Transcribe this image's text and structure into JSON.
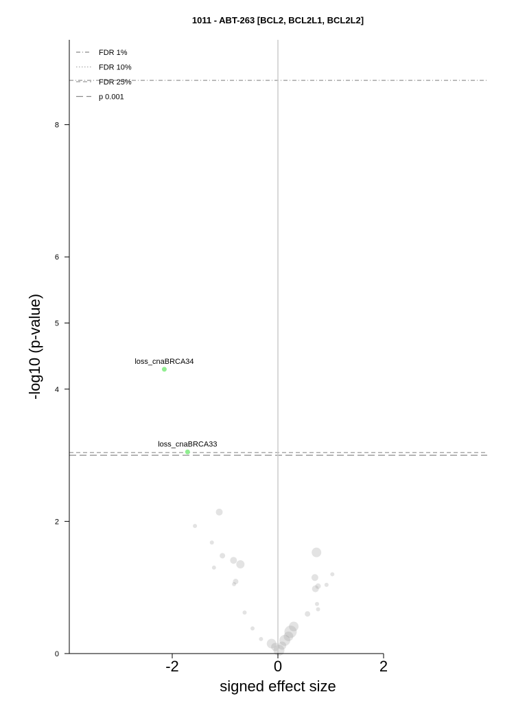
{
  "chart_data": {
    "type": "scatter",
    "title": "1011 - ABT-263 [BCL2, BCL2L1, BCL2L2]",
    "xlabel": "signed effect size",
    "ylabel": "-log10 (p-value)",
    "xlim": [
      -4,
      4
    ],
    "ylim": [
      0,
      9
    ],
    "xticks": [
      -2,
      0,
      2
    ],
    "yticks": [
      0,
      2,
      4,
      5,
      6,
      8
    ],
    "thresholds": [
      {
        "name": "FDR 1%",
        "y": 8.67,
        "style": "dashdot"
      },
      {
        "name": "FDR 10%",
        "y": 3.04,
        "style": "dotted"
      },
      {
        "name": "FDR 25%",
        "y": 3.04,
        "style": "dashed"
      },
      {
        "name": "p 0.001",
        "y": 3.0,
        "style": "longdash"
      }
    ],
    "legend_position": "top-left",
    "highlighted_points": [
      {
        "label": "loss_cnaBRCA34",
        "x": -2.15,
        "y": 4.3,
        "color": "#90ee90"
      },
      {
        "label": "loss_cnaBRCA33",
        "x": -1.71,
        "y": 3.05,
        "color": "#90ee90"
      }
    ],
    "background_points": [
      {
        "x": -1.11,
        "y": 2.14,
        "s": 5
      },
      {
        "x": -1.57,
        "y": 1.93,
        "s": 3
      },
      {
        "x": -1.25,
        "y": 1.68,
        "s": 3
      },
      {
        "x": -1.05,
        "y": 1.48,
        "s": 4
      },
      {
        "x": -0.84,
        "y": 1.41,
        "s": 5
      },
      {
        "x": -0.71,
        "y": 1.35,
        "s": 6
      },
      {
        "x": -1.21,
        "y": 1.3,
        "s": 3
      },
      {
        "x": -0.8,
        "y": 1.09,
        "s": 4
      },
      {
        "x": -0.83,
        "y": 1.05,
        "s": 3
      },
      {
        "x": -0.63,
        "y": 0.62,
        "s": 3
      },
      {
        "x": -0.48,
        "y": 0.38,
        "s": 3
      },
      {
        "x": -0.32,
        "y": 0.22,
        "s": 3
      },
      {
        "x": -0.12,
        "y": 0.15,
        "s": 7
      },
      {
        "x": -0.05,
        "y": 0.1,
        "s": 6
      },
      {
        "x": 0.02,
        "y": 0.05,
        "s": 8
      },
      {
        "x": 0.08,
        "y": 0.12,
        "s": 6
      },
      {
        "x": 0.13,
        "y": 0.2,
        "s": 8
      },
      {
        "x": 0.2,
        "y": 0.26,
        "s": 7
      },
      {
        "x": 0.24,
        "y": 0.33,
        "s": 9
      },
      {
        "x": 0.3,
        "y": 0.41,
        "s": 7
      },
      {
        "x": 0.56,
        "y": 0.6,
        "s": 4
      },
      {
        "x": 0.71,
        "y": 0.98,
        "s": 5
      },
      {
        "x": 0.76,
        "y": 1.02,
        "s": 4
      },
      {
        "x": 0.7,
        "y": 1.15,
        "s": 5
      },
      {
        "x": 0.73,
        "y": 1.53,
        "s": 7
      },
      {
        "x": 0.92,
        "y": 1.04,
        "s": 3
      },
      {
        "x": 1.03,
        "y": 1.2,
        "s": 3
      },
      {
        "x": 0.74,
        "y": 0.75,
        "s": 3
      },
      {
        "x": 0.76,
        "y": 0.67,
        "s": 3
      }
    ]
  }
}
